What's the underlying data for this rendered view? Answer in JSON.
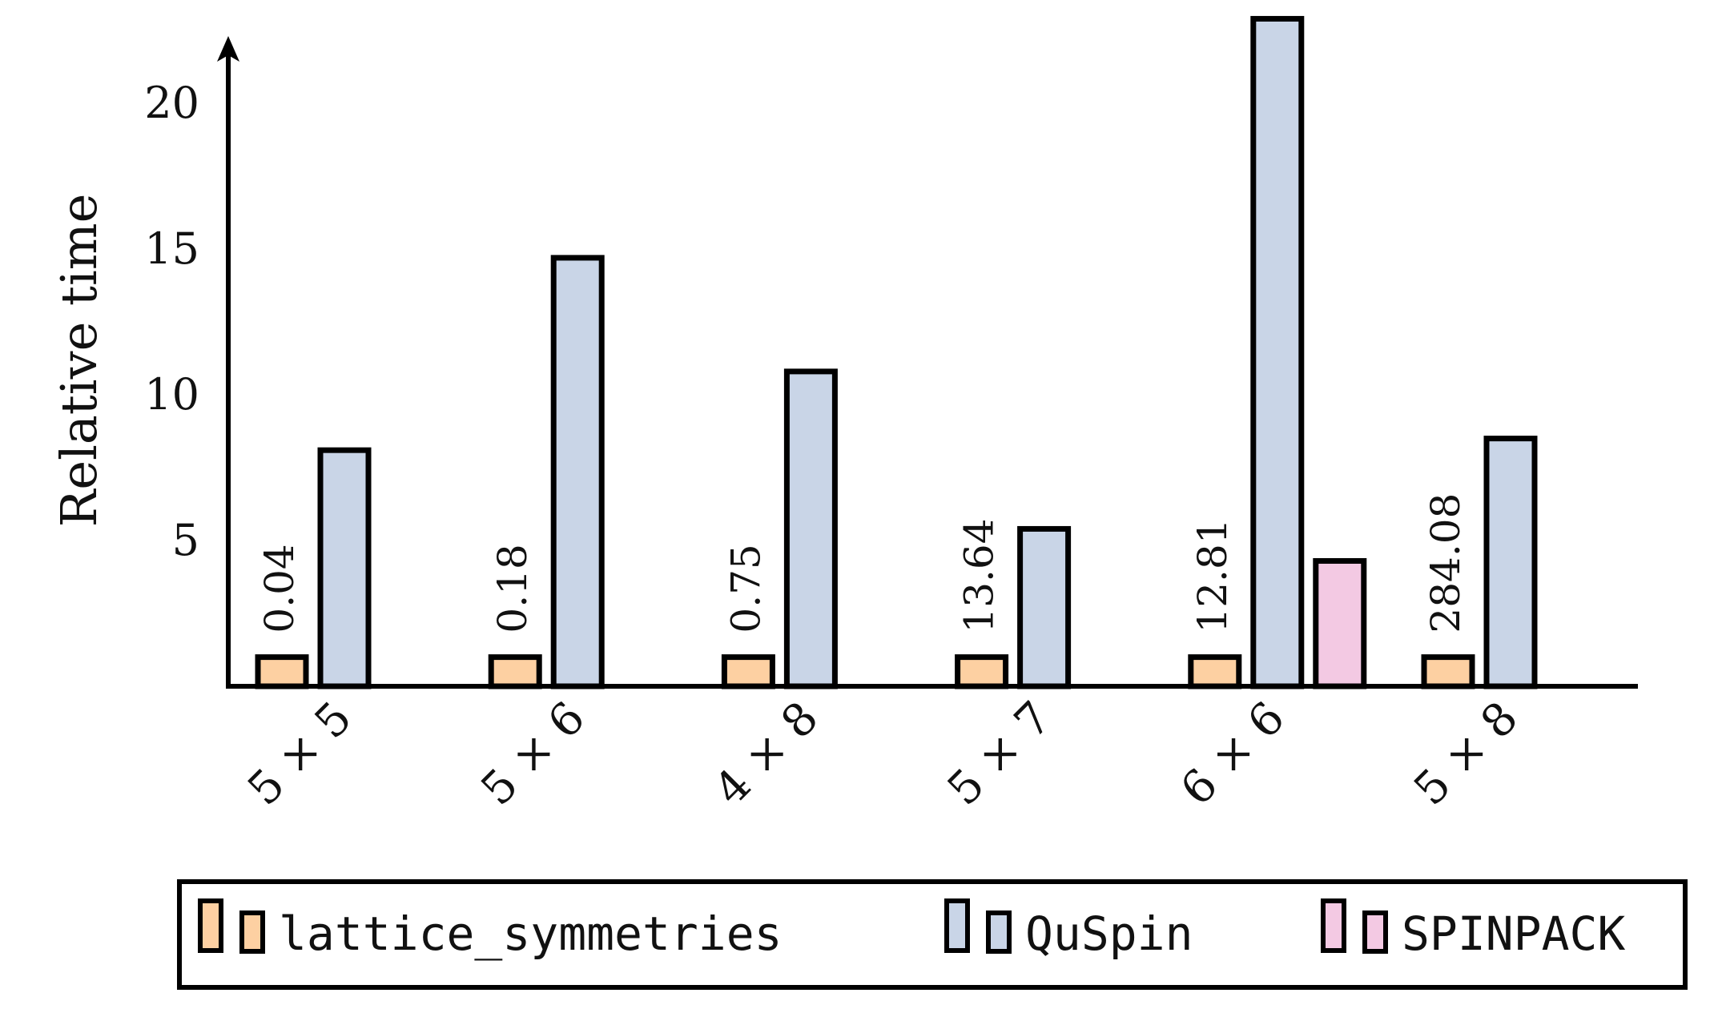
{
  "chart_data": {
    "type": "bar",
    "ylabel": "Relative time",
    "xlabel": "",
    "title": "",
    "ylim": [
      0,
      23
    ],
    "yticks": [
      5,
      10,
      15,
      20
    ],
    "categories": [
      "5 × 5",
      "5 × 6",
      "4 × 8",
      "5 × 7",
      "6 × 6",
      "5 × 8"
    ],
    "series": [
      {
        "name": "lattice_symmetries",
        "color": "#fdd0a2",
        "values": [
          1,
          1,
          1,
          1,
          1,
          1
        ],
        "data_labels": [
          "0.04",
          "0.18",
          "0.75",
          "13.64",
          "12.81",
          "284.08"
        ]
      },
      {
        "name": "QuSpin",
        "color": "#c9d5e7",
        "values": [
          8.1,
          14.7,
          10.8,
          5.4,
          22.9,
          8.5
        ]
      },
      {
        "name": "SPINPACK",
        "color": "#f3c9e3",
        "values": [
          null,
          null,
          null,
          null,
          4.3,
          null
        ]
      }
    ],
    "legend_position": "bottom",
    "grid": false
  }
}
